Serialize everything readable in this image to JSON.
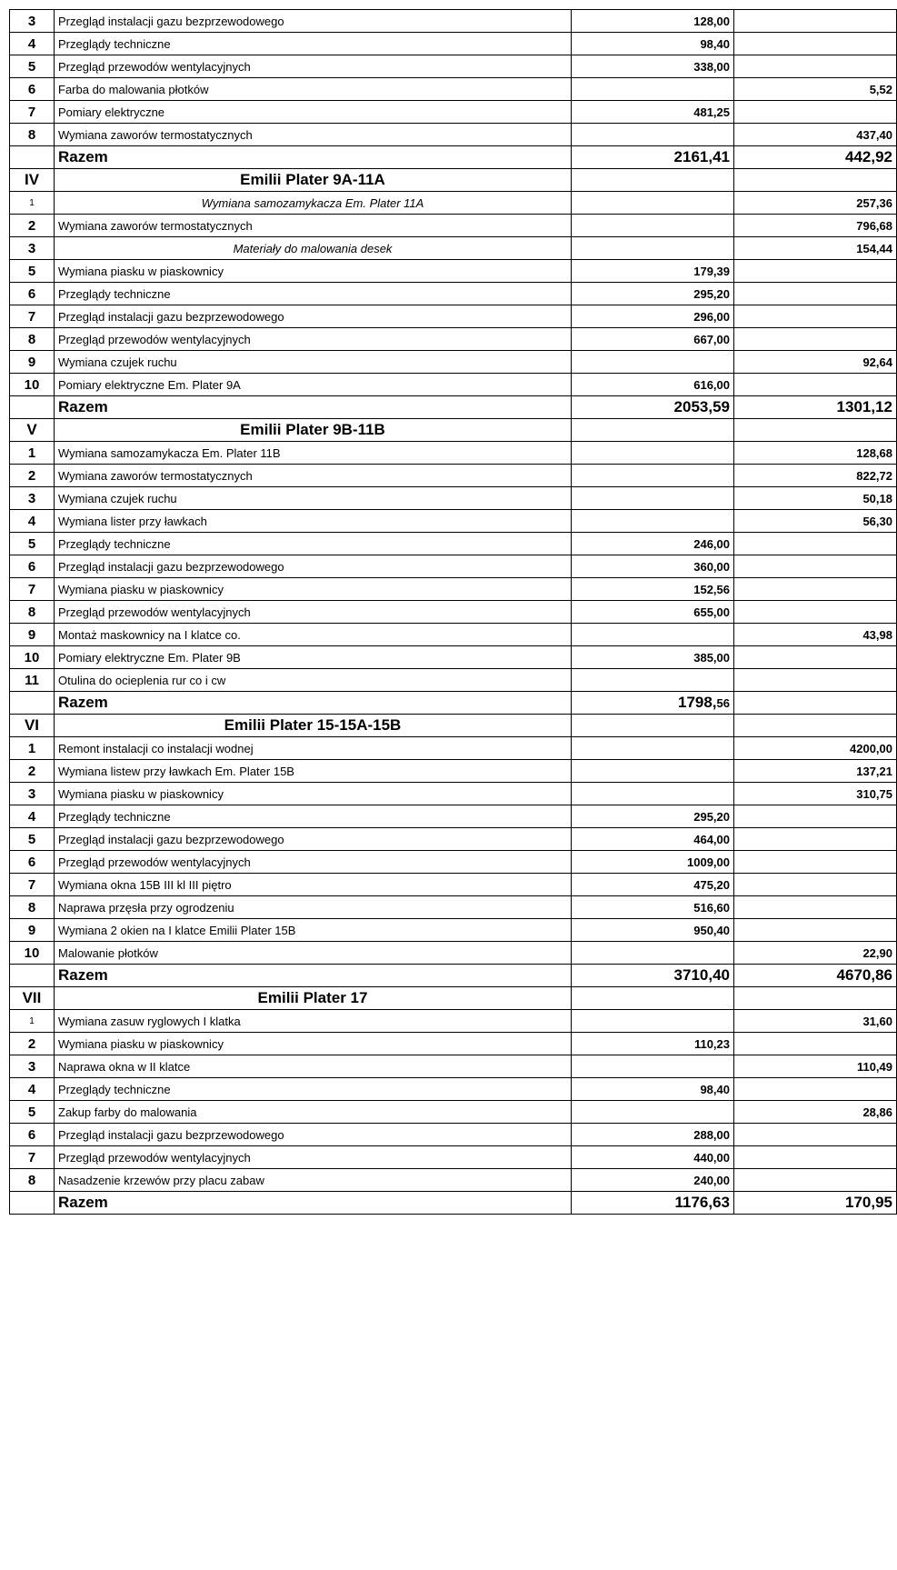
{
  "rows": [
    {
      "num": "3",
      "desc": "Przegląd instalacji gazu bezprzewodowego",
      "v1": "128,00",
      "v2": "",
      "bold_num": true,
      "bold_v1": true
    },
    {
      "num": "4",
      "desc": "Przeglądy techniczne",
      "v1": "98,40",
      "v2": "",
      "bold_num": true,
      "bold_v1": true
    },
    {
      "num": "5",
      "desc": "Przegląd przewodów wentylacyjnych",
      "v1": "338,00",
      "v2": "",
      "bold_num": true,
      "bold_v1": true
    },
    {
      "num": "6",
      "desc": "Farba do malowania płotków",
      "v1": "",
      "v2": "5,52",
      "bold_num": true,
      "bold_v2": true
    },
    {
      "num": "7",
      "desc": "Pomiary elektryczne",
      "v1": "481,25",
      "v2": "",
      "bold_num": true,
      "bold_v1": true
    },
    {
      "num": "8",
      "desc": "Wymiana zaworów termostatycznych",
      "v1": "",
      "v2": "437,40",
      "bold_num": true,
      "bold_v2": true
    },
    {
      "num": "",
      "desc": "Razem",
      "v1": "2161,41",
      "v2": "442,92",
      "razem": true
    },
    {
      "num": "IV",
      "desc": "Emilii Plater 9A-11A",
      "v1": "",
      "v2": "",
      "section": true
    },
    {
      "num": "1",
      "desc": "Wymiana samozamykacza Em. Plater 11A",
      "v1": "",
      "v2": "257,36",
      "small_num": true,
      "italic": true,
      "bold_v2": true
    },
    {
      "num": "2",
      "desc": "Wymiana zaworów termostatycznych",
      "v1": "",
      "v2": "796,68",
      "bold_num": true,
      "bold_v2": true
    },
    {
      "num": "3",
      "desc": "Materiały do malowania desek",
      "v1": "",
      "v2": "154,44",
      "bold_num": true,
      "italic": true,
      "bold_v2": true
    },
    {
      "num": "5",
      "desc": "Wymiana piasku w piaskownicy",
      "v1": "179,39",
      "v2": "",
      "bold_num": true,
      "bold_v1": true
    },
    {
      "num": "6",
      "desc": "Przeglądy techniczne",
      "v1": "295,20",
      "v2": "",
      "bold_num": true,
      "bold_v1": true
    },
    {
      "num": "7",
      "desc": "Przegląd instalacji gazu bezprzewodowego",
      "v1": "296,00",
      "v2": "",
      "bold_num": true,
      "bold_v1": true
    },
    {
      "num": "8",
      "desc": "Przegląd przewodów wentylacyjnych",
      "v1": "667,00",
      "v2": "",
      "bold_num": true,
      "bold_v1": true
    },
    {
      "num": "9",
      "desc": "Wymiana czujek ruchu",
      "v1": "",
      "v2": "92,64",
      "bold_num": true,
      "bold_v2": true
    },
    {
      "num": "10",
      "desc": "Pomiary elektryczne Em. Plater 9A",
      "v1": "616,00",
      "v2": "",
      "bold_num": true,
      "bold_v1": true
    },
    {
      "num": "",
      "desc": "Razem",
      "v1": "2053,59",
      "v2": "1301,12",
      "razem": true
    },
    {
      "num": "V",
      "desc": "Emilii Plater 9B-11B",
      "v1": "",
      "v2": "",
      "section": true
    },
    {
      "num": "1",
      "desc": "Wymiana samozamykacza Em. Plater 11B",
      "v1": "",
      "v2": "128,68",
      "bold_num": true,
      "bold_v2": true
    },
    {
      "num": "2",
      "desc": "Wymiana zaworów termostatycznych",
      "v1": "",
      "v2": "822,72",
      "bold_num": true,
      "bold_v2": true
    },
    {
      "num": "3",
      "desc": "Wymiana czujek ruchu",
      "v1": "",
      "v2": "50,18",
      "bold_num": true,
      "bold_v2": true
    },
    {
      "num": "4",
      "desc": "Wymiana lister przy ławkach",
      "v1": "",
      "v2": "56,30",
      "bold_num": true,
      "bold_v2": true
    },
    {
      "num": "5",
      "desc": "Przeglądy techniczne",
      "v1": "246,00",
      "v2": "",
      "bold_num": true,
      "bold_v1": true
    },
    {
      "num": "6",
      "desc": "Przegląd instalacji gazu bezprzewodowego",
      "v1": "360,00",
      "v2": "",
      "bold_num": true,
      "bold_v1": true
    },
    {
      "num": "7",
      "desc": "Wymiana piasku w piaskownicy",
      "v1": "152,56",
      "v2": "",
      "bold_num": true,
      "bold_v1": true
    },
    {
      "num": "8",
      "desc": "Przegląd przewodów wentylacyjnych",
      "v1": "655,00",
      "v2": "",
      "bold_num": true,
      "bold_v1": true
    },
    {
      "num": "9",
      "desc": "Montaż maskownicy na I klatce co.",
      "v1": "",
      "v2": "43,98",
      "bold_num": true,
      "bold_v2": true
    },
    {
      "num": "10",
      "desc": "Pomiary elektryczne Em. Plater 9B",
      "v1": "385,00",
      "v2": "",
      "bold_num": true,
      "bold_v1": true
    },
    {
      "num": "11",
      "desc": "Otulina do ocieplenia rur co i cw",
      "v1": "",
      "v2": "",
      "bold_num": true
    },
    {
      "num": "",
      "desc": "Razem",
      "v1": "1798,56",
      "v2": "",
      "razem": true,
      "mixed_v1": true
    },
    {
      "num": "VI",
      "desc": "Emilii Plater 15-15A-15B",
      "v1": "",
      "v2": "",
      "section": true
    },
    {
      "num": "1",
      "desc": "Remont instalacji co instalacji wodnej",
      "v1": "",
      "v2": "4200,00",
      "bold_num": true,
      "bold_v2": true
    },
    {
      "num": "2",
      "desc": "Wymiana listew przy ławkach Em. Plater 15B",
      "v1": "",
      "v2": "137,21",
      "bold_num": true,
      "bold_v2": true
    },
    {
      "num": "3",
      "desc": "Wymiana piasku w piaskownicy",
      "v1": "",
      "v2": "310,75",
      "bold_num": true,
      "bold_v2": true
    },
    {
      "num": "4",
      "desc": "Przeglądy techniczne",
      "v1": "295,20",
      "v2": "",
      "bold_num": true,
      "bold_v1": true
    },
    {
      "num": "5",
      "desc": "Przegląd instalacji gazu bezprzewodowego",
      "v1": "464,00",
      "v2": "",
      "bold_num": true,
      "bold_v1": true
    },
    {
      "num": "6",
      "desc": "Przegląd przewodów wentylacyjnych",
      "v1": "1009,00",
      "v2": "",
      "bold_num": true,
      "bold_v1": true
    },
    {
      "num": "7",
      "desc": "Wymiana okna 15B III kl III piętro",
      "v1": "475,20",
      "v2": "",
      "bold_num": true,
      "bold_v1": true
    },
    {
      "num": "8",
      "desc": "Naprawa przęsła przy ogrodzeniu",
      "v1": "516,60",
      "v2": "",
      "bold_num": true,
      "bold_v1": true
    },
    {
      "num": "9",
      "desc": "Wymiana 2 okien na I klatce Emilii Plater 15B",
      "v1": "950,40",
      "v2": "",
      "bold_num": true,
      "bold_v1": true
    },
    {
      "num": "10",
      "desc": "Malowanie płotków",
      "v1": "",
      "v2": "22,90",
      "bold_num": true,
      "bold_v2": true
    },
    {
      "num": "",
      "desc": "Razem",
      "v1": "3710,40",
      "v2": "4670,86",
      "razem": true
    },
    {
      "num": "VII",
      "desc": "Emilii Plater 17",
      "v1": "",
      "v2": "",
      "section": true
    },
    {
      "num": "1",
      "desc": "Wymiana zasuw ryglowych I klatka",
      "v1": "",
      "v2": "31,60",
      "small_num": true,
      "bold_v2": true
    },
    {
      "num": "2",
      "desc": "Wymiana piasku w piaskownicy",
      "v1": "110,23",
      "v2": "",
      "bold_num": true,
      "bold_v1": true
    },
    {
      "num": "3",
      "desc": "Naprawa okna w II klatce",
      "v1": "",
      "v2": "110,49",
      "bold_num": true,
      "bold_v2": true
    },
    {
      "num": "4",
      "desc": "Przeglądy techniczne",
      "v1": "98,40",
      "v2": "",
      "bold_num": true,
      "bold_v1": true
    },
    {
      "num": "5",
      "desc": "Zakup farby do malowania",
      "v1": "",
      "v2": "28,86",
      "bold_num": true,
      "bold_v2": true
    },
    {
      "num": "6",
      "desc": "Przegląd instalacji gazu bezprzewodowego",
      "v1": "288,00",
      "v2": "",
      "bold_num": true,
      "bold_v1": true
    },
    {
      "num": "7",
      "desc": "Przegląd przewodów wentylacyjnych",
      "v1": "440,00",
      "v2": "",
      "bold_num": true,
      "bold_v1": true
    },
    {
      "num": "8",
      "desc": "Nasadzenie krzewów przy placu zabaw",
      "v1": "240,00",
      "v2": "",
      "bold_num": true,
      "bold_v1": true
    },
    {
      "num": "",
      "desc": "Razem",
      "v1": "1176,63",
      "v2": "170,95",
      "razem": true
    }
  ]
}
